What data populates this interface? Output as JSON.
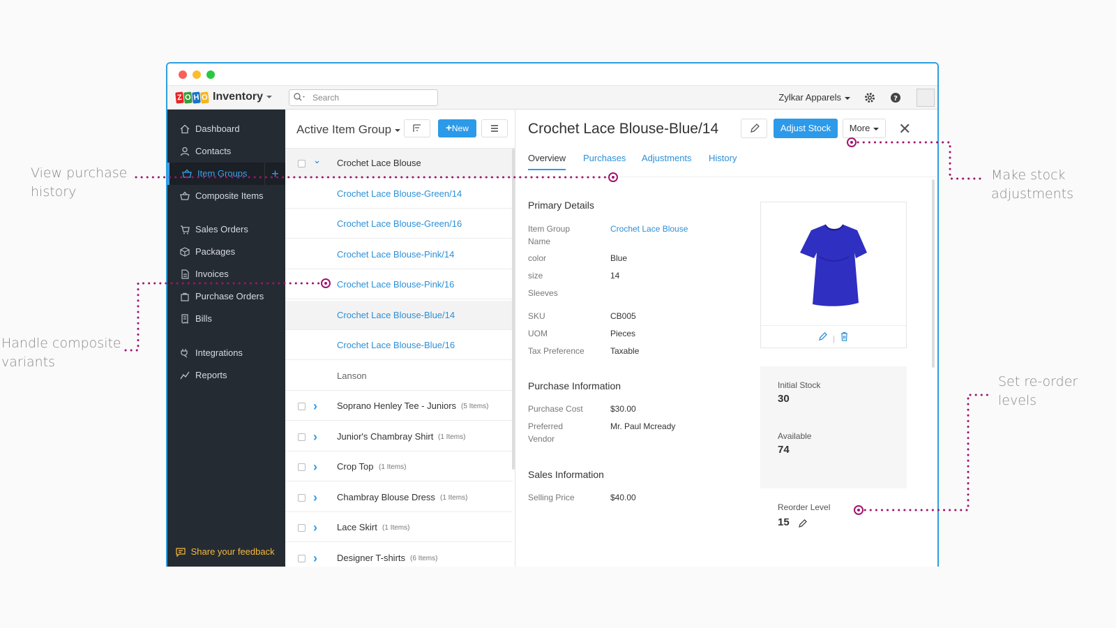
{
  "callouts": {
    "purchase_history": [
      "View purchase",
      "history"
    ],
    "composite_variants": [
      "Handle composite",
      "variants"
    ],
    "stock_adjustments": [
      "Make stock",
      "adjustments"
    ],
    "reorder_levels": [
      "Set re-order levels"
    ]
  },
  "topbar": {
    "product_name": "Inventory",
    "search_placeholder": "Search",
    "org_name": "Zylkar Apparels"
  },
  "sidebar": {
    "items": [
      {
        "label": "Dashboard",
        "icon": "home-icon"
      },
      {
        "label": "Contacts",
        "icon": "user-icon"
      },
      {
        "label": "Item Groups",
        "icon": "basket-icon",
        "active": true
      },
      {
        "label": "Composite Items",
        "icon": "basket-icon"
      },
      {
        "label": "Sales Orders",
        "icon": "cart-icon"
      },
      {
        "label": "Packages",
        "icon": "box-icon"
      },
      {
        "label": "Invoices",
        "icon": "document-icon"
      },
      {
        "label": "Purchase Orders",
        "icon": "bag-icon"
      },
      {
        "label": "Bills",
        "icon": "receipt-icon"
      },
      {
        "label": "Integrations",
        "icon": "plug-icon"
      },
      {
        "label": "Reports",
        "icon": "chart-icon"
      }
    ],
    "feedback": "Share your feedback"
  },
  "list": {
    "title": "Active Item Group",
    "new_button": "New",
    "rows": [
      {
        "name": "Crochet Lace Blouse",
        "kind": "group-open"
      },
      {
        "name": "Crochet Lace Blouse-Green/14",
        "kind": "link"
      },
      {
        "name": "Crochet Lace Blouse-Green/16",
        "kind": "link"
      },
      {
        "name": "Crochet Lace Blouse-Pink/14",
        "kind": "link"
      },
      {
        "name": "Crochet Lace Blouse-Pink/16",
        "kind": "link"
      },
      {
        "name": "Crochet Lace Blouse-Blue/14",
        "kind": "link",
        "selected": true
      },
      {
        "name": "Crochet Lace Blouse-Blue/16",
        "kind": "link"
      },
      {
        "name": "Lanson",
        "kind": "grey"
      },
      {
        "name": "Soprano Henley Tee - Juniors",
        "count": "(5 Items)",
        "kind": "group"
      },
      {
        "name": "Junior's Chambray Shirt",
        "count": "(1 Items)",
        "kind": "group"
      },
      {
        "name": "Crop Top",
        "count": "(1 Items)",
        "kind": "group"
      },
      {
        "name": "Chambray Blouse Dress",
        "count": "(1 Items)",
        "kind": "group"
      },
      {
        "name": "Lace Skirt",
        "count": "(1 Items)",
        "kind": "group"
      },
      {
        "name": "Designer T-shirts",
        "count": "(6 Items)",
        "kind": "group"
      }
    ]
  },
  "detail": {
    "title": "Crochet Lace Blouse-Blue/14",
    "adjust_button": "Adjust Stock",
    "more_button": "More",
    "tabs": [
      "Overview",
      "Purchases",
      "Adjustments",
      "History"
    ],
    "primary_heading": "Primary Details",
    "primary": [
      {
        "label": "Item Group Name",
        "value": "Crochet Lace Blouse",
        "link": true
      },
      {
        "label": "color",
        "value": "Blue"
      },
      {
        "label": "size",
        "value": "14"
      },
      {
        "label": "Sleeves",
        "value": ""
      },
      {
        "label": "SKU",
        "value": "CB005"
      },
      {
        "label": "UOM",
        "value": "Pieces"
      },
      {
        "label": "Tax Preference",
        "value": "Taxable"
      }
    ],
    "purchase_heading": "Purchase Information",
    "purchase": [
      {
        "label": "Purchase Cost",
        "value": "$30.00"
      },
      {
        "label": "Preferred Vendor",
        "value": "Mr. Paul Mcready"
      }
    ],
    "sales_heading": "Sales Information",
    "sales": [
      {
        "label": "Selling Price",
        "value": "$40.00"
      }
    ],
    "stock": {
      "initial_label": "Initial Stock",
      "initial_value": "30",
      "available_label": "Available",
      "available_value": "74",
      "reorder_label": "Reorder Level",
      "reorder_value": "15"
    }
  },
  "colors": {
    "accent": "#2c9ae8",
    "annotation": "#a0136e",
    "sidebar": "#252b33"
  }
}
